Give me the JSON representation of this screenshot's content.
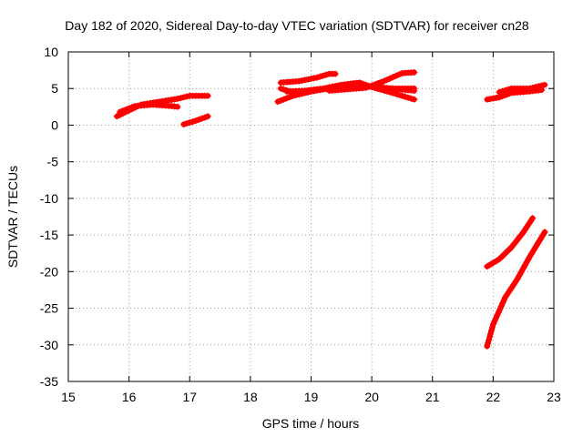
{
  "chart_data": {
    "type": "scatter",
    "title": "Day 182 of 2020, Sidereal Day-to-day VTEC variation (SDTVAR) for receiver cn28",
    "xlabel": "GPS time / hours",
    "ylabel": "SDTVAR / TECUs",
    "xlim": [
      15,
      23
    ],
    "ylim": [
      -35,
      10
    ],
    "xticks": [
      "15",
      "16",
      "17",
      "18",
      "19",
      "20",
      "21",
      "22",
      "23"
    ],
    "yticks": [
      "10",
      "5",
      "0",
      "-5",
      "-10",
      "-15",
      "-20",
      "-25",
      "-30",
      "-35"
    ],
    "grid": true,
    "marker": "plus",
    "color": "#ff0000",
    "series": [
      {
        "points": [
          [
            15.8,
            1.2
          ],
          [
            16.0,
            2.0
          ],
          [
            16.2,
            2.8
          ],
          [
            16.5,
            3.2
          ],
          [
            16.8,
            3.6
          ],
          [
            17.0,
            4.0
          ],
          [
            17.3,
            4.0
          ]
        ]
      },
      {
        "points": [
          [
            15.85,
            1.8
          ],
          [
            16.1,
            2.6
          ],
          [
            16.4,
            2.8
          ],
          [
            16.7,
            2.6
          ],
          [
            16.8,
            2.5
          ]
        ]
      },
      {
        "points": [
          [
            16.9,
            0.1
          ],
          [
            17.1,
            0.6
          ],
          [
            17.3,
            1.2
          ]
        ]
      },
      {
        "points": [
          [
            18.45,
            3.2
          ],
          [
            18.7,
            4.0
          ],
          [
            19.0,
            4.6
          ],
          [
            19.3,
            5.0
          ],
          [
            19.6,
            5.3
          ],
          [
            19.9,
            5.3
          ],
          [
            20.2,
            5.1
          ],
          [
            20.7,
            4.7
          ]
        ]
      },
      {
        "points": [
          [
            18.5,
            5.8
          ],
          [
            18.8,
            6.0
          ],
          [
            19.1,
            6.5
          ],
          [
            19.3,
            7.0
          ],
          [
            19.4,
            7.0
          ]
        ]
      },
      {
        "points": [
          [
            18.5,
            5.0
          ],
          [
            18.8,
            4.2
          ],
          [
            19.1,
            4.8
          ]
        ]
      },
      {
        "points": [
          [
            18.6,
            4.6
          ],
          [
            18.9,
            4.7
          ],
          [
            19.2,
            5.0
          ],
          [
            19.5,
            5.5
          ],
          [
            19.8,
            5.8
          ],
          [
            20.0,
            5.2
          ],
          [
            20.3,
            4.5
          ],
          [
            20.7,
            3.5
          ]
        ]
      },
      {
        "points": [
          [
            19.3,
            4.7
          ],
          [
            19.6,
            4.9
          ],
          [
            19.9,
            5.1
          ],
          [
            20.2,
            6.0
          ],
          [
            20.5,
            7.1
          ],
          [
            20.7,
            7.2
          ]
        ]
      },
      {
        "points": [
          [
            19.8,
            5.5
          ],
          [
            20.3,
            5.0
          ],
          [
            20.7,
            5.0
          ]
        ]
      },
      {
        "points": [
          [
            21.9,
            3.5
          ],
          [
            22.1,
            3.8
          ],
          [
            22.3,
            4.4
          ],
          [
            22.6,
            4.6
          ],
          [
            22.8,
            4.8
          ]
        ]
      },
      {
        "points": [
          [
            22.1,
            4.5
          ],
          [
            22.3,
            5.0
          ],
          [
            22.6,
            5.0
          ],
          [
            22.85,
            5.5
          ]
        ]
      },
      {
        "points": [
          [
            21.9,
            -19.3
          ],
          [
            22.1,
            -18.3
          ],
          [
            22.3,
            -16.7
          ],
          [
            22.5,
            -14.6
          ],
          [
            22.65,
            -12.7
          ]
        ]
      },
      {
        "points": [
          [
            21.9,
            -30.2
          ],
          [
            22.0,
            -27.2
          ],
          [
            22.2,
            -23.5
          ],
          [
            22.4,
            -21.0
          ],
          [
            22.6,
            -18.0
          ],
          [
            22.85,
            -14.6
          ]
        ]
      }
    ]
  }
}
